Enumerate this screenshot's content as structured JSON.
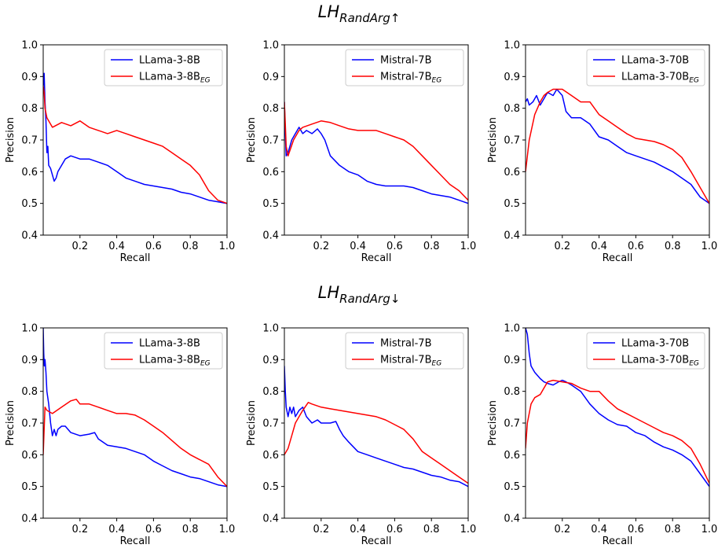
{
  "figure": {
    "row_titles": [
      {
        "base": "LH",
        "sub": "RandArg",
        "arrow": "↑"
      },
      {
        "base": "LH",
        "sub": "RandArg",
        "arrow": "↓"
      }
    ]
  },
  "chart_data": [
    {
      "type": "line",
      "row": 0,
      "col": 0,
      "xlabel": "Recall",
      "ylabel": "Precision",
      "xlim": [
        0,
        1
      ],
      "ylim": [
        0.4,
        1.0
      ],
      "xticks": [
        "0.2",
        "0.4",
        "0.6",
        "0.8",
        "1.0"
      ],
      "yticks": [
        "0.4",
        "0.5",
        "0.6",
        "0.7",
        "0.8",
        "0.9",
        "1.0"
      ],
      "legend": "top-right",
      "series": [
        {
          "name": "LLama-3-8B",
          "name_sub": "",
          "color": "#0000ff",
          "x": [
            0,
            0.005,
            0.01,
            0.015,
            0.02,
            0.025,
            0.03,
            0.04,
            0.05,
            0.06,
            0.07,
            0.08,
            0.1,
            0.12,
            0.15,
            0.2,
            0.25,
            0.3,
            0.35,
            0.4,
            0.45,
            0.5,
            0.55,
            0.6,
            0.65,
            0.7,
            0.75,
            0.8,
            0.85,
            0.9,
            0.95,
            1.0
          ],
          "y": [
            0.87,
            0.91,
            0.82,
            0.76,
            0.66,
            0.68,
            0.62,
            0.61,
            0.59,
            0.57,
            0.58,
            0.6,
            0.62,
            0.64,
            0.65,
            0.64,
            0.64,
            0.63,
            0.62,
            0.6,
            0.58,
            0.57,
            0.56,
            0.555,
            0.55,
            0.545,
            0.535,
            0.53,
            0.52,
            0.51,
            0.505,
            0.5
          ]
        },
        {
          "name": "LLama-3-8B",
          "name_sub": "EG",
          "color": "#ff0000",
          "x": [
            0,
            0.005,
            0.01,
            0.02,
            0.05,
            0.1,
            0.15,
            0.2,
            0.25,
            0.3,
            0.35,
            0.4,
            0.45,
            0.5,
            0.55,
            0.6,
            0.65,
            0.7,
            0.75,
            0.8,
            0.85,
            0.9,
            0.95,
            1.0
          ],
          "y": [
            0.87,
            0.85,
            0.8,
            0.77,
            0.74,
            0.755,
            0.745,
            0.76,
            0.74,
            0.73,
            0.72,
            0.73,
            0.72,
            0.71,
            0.7,
            0.69,
            0.68,
            0.66,
            0.64,
            0.62,
            0.59,
            0.54,
            0.51,
            0.5
          ]
        }
      ]
    },
    {
      "type": "line",
      "row": 0,
      "col": 1,
      "xlabel": "Recall",
      "ylabel": "Precision",
      "xlim": [
        0,
        1
      ],
      "ylim": [
        0.4,
        1.0
      ],
      "xticks": [
        "0.2",
        "0.4",
        "0.6",
        "0.8",
        "1.0"
      ],
      "yticks": [
        "0.4",
        "0.5",
        "0.6",
        "0.7",
        "0.8",
        "0.9",
        "1.0"
      ],
      "legend": "top-right",
      "series": [
        {
          "name": "Mistral-7B",
          "name_sub": "",
          "color": "#0000ff",
          "x": [
            0,
            0.005,
            0.01,
            0.02,
            0.04,
            0.06,
            0.08,
            0.1,
            0.12,
            0.15,
            0.18,
            0.2,
            0.22,
            0.25,
            0.3,
            0.35,
            0.4,
            0.45,
            0.5,
            0.55,
            0.6,
            0.65,
            0.7,
            0.75,
            0.8,
            0.85,
            0.9,
            0.95,
            1.0
          ],
          "y": [
            0.82,
            0.72,
            0.65,
            0.66,
            0.7,
            0.72,
            0.74,
            0.72,
            0.73,
            0.72,
            0.735,
            0.72,
            0.7,
            0.65,
            0.62,
            0.6,
            0.59,
            0.57,
            0.56,
            0.555,
            0.555,
            0.555,
            0.55,
            0.54,
            0.53,
            0.525,
            0.52,
            0.51,
            0.5
          ]
        },
        {
          "name": "Mistral-7B",
          "name_sub": "EG",
          "color": "#ff0000",
          "x": [
            0,
            0.005,
            0.01,
            0.02,
            0.05,
            0.08,
            0.1,
            0.15,
            0.2,
            0.25,
            0.3,
            0.35,
            0.4,
            0.45,
            0.5,
            0.55,
            0.6,
            0.65,
            0.7,
            0.75,
            0.8,
            0.85,
            0.9,
            0.95,
            1.0
          ],
          "y": [
            0.82,
            0.75,
            0.68,
            0.65,
            0.7,
            0.73,
            0.74,
            0.75,
            0.76,
            0.755,
            0.745,
            0.735,
            0.73,
            0.73,
            0.73,
            0.72,
            0.71,
            0.7,
            0.68,
            0.65,
            0.62,
            0.59,
            0.56,
            0.54,
            0.51
          ]
        }
      ]
    },
    {
      "type": "line",
      "row": 0,
      "col": 2,
      "xlabel": "Recall",
      "ylabel": "Precision",
      "xlim": [
        0,
        1
      ],
      "ylim": [
        0.4,
        1.0
      ],
      "xticks": [
        "0.2",
        "0.4",
        "0.6",
        "0.8",
        "1.0"
      ],
      "yticks": [
        "0.4",
        "0.5",
        "0.6",
        "0.7",
        "0.8",
        "0.9",
        "1.0"
      ],
      "legend": "top-right",
      "series": [
        {
          "name": "LLama-3-70B",
          "name_sub": "",
          "color": "#0000ff",
          "x": [
            0,
            0.01,
            0.02,
            0.04,
            0.06,
            0.08,
            0.1,
            0.12,
            0.15,
            0.17,
            0.2,
            0.22,
            0.25,
            0.3,
            0.35,
            0.4,
            0.45,
            0.5,
            0.55,
            0.6,
            0.65,
            0.7,
            0.75,
            0.8,
            0.85,
            0.9,
            0.95,
            1.0
          ],
          "y": [
            0.82,
            0.83,
            0.81,
            0.82,
            0.84,
            0.81,
            0.83,
            0.85,
            0.84,
            0.86,
            0.84,
            0.79,
            0.77,
            0.77,
            0.75,
            0.71,
            0.7,
            0.68,
            0.66,
            0.65,
            0.64,
            0.63,
            0.615,
            0.6,
            0.58,
            0.56,
            0.52,
            0.5
          ]
        },
        {
          "name": "LLama-3-70B",
          "name_sub": "EG",
          "color": "#ff0000",
          "x": [
            0,
            0.02,
            0.05,
            0.08,
            0.1,
            0.12,
            0.15,
            0.2,
            0.25,
            0.3,
            0.35,
            0.4,
            0.45,
            0.5,
            0.55,
            0.6,
            0.65,
            0.7,
            0.75,
            0.8,
            0.85,
            0.9,
            0.95,
            1.0
          ],
          "y": [
            0.6,
            0.7,
            0.78,
            0.82,
            0.84,
            0.85,
            0.86,
            0.86,
            0.84,
            0.82,
            0.82,
            0.78,
            0.76,
            0.74,
            0.72,
            0.705,
            0.7,
            0.695,
            0.685,
            0.67,
            0.645,
            0.6,
            0.55,
            0.5
          ]
        }
      ]
    },
    {
      "type": "line",
      "row": 1,
      "col": 0,
      "xlabel": "Recall",
      "ylabel": "Precision",
      "xlim": [
        0,
        1
      ],
      "ylim": [
        0.4,
        1.0
      ],
      "xticks": [
        "0.2",
        "0.4",
        "0.6",
        "0.8",
        "1.0"
      ],
      "yticks": [
        "0.4",
        "0.5",
        "0.6",
        "0.7",
        "0.8",
        "0.9",
        "1.0"
      ],
      "legend": "top-right",
      "series": [
        {
          "name": "LLama-3-8B",
          "name_sub": "",
          "color": "#0000ff",
          "x": [
            0,
            0.003,
            0.006,
            0.01,
            0.015,
            0.02,
            0.03,
            0.04,
            0.05,
            0.06,
            0.07,
            0.08,
            0.1,
            0.12,
            0.15,
            0.2,
            0.25,
            0.28,
            0.3,
            0.35,
            0.4,
            0.45,
            0.5,
            0.55,
            0.6,
            0.65,
            0.7,
            0.75,
            0.8,
            0.85,
            0.9,
            0.95,
            1.0
          ],
          "y": [
            1.0,
            0.92,
            0.88,
            0.9,
            0.86,
            0.8,
            0.76,
            0.7,
            0.66,
            0.68,
            0.66,
            0.68,
            0.69,
            0.69,
            0.67,
            0.66,
            0.665,
            0.67,
            0.65,
            0.63,
            0.625,
            0.62,
            0.61,
            0.6,
            0.58,
            0.565,
            0.55,
            0.54,
            0.53,
            0.525,
            0.515,
            0.505,
            0.5
          ]
        },
        {
          "name": "LLama-3-8B",
          "name_sub": "EG",
          "color": "#ff0000",
          "x": [
            0,
            0.005,
            0.01,
            0.02,
            0.05,
            0.1,
            0.15,
            0.18,
            0.2,
            0.25,
            0.3,
            0.35,
            0.4,
            0.45,
            0.5,
            0.55,
            0.6,
            0.65,
            0.7,
            0.75,
            0.8,
            0.85,
            0.9,
            0.95,
            1.0
          ],
          "y": [
            0.6,
            0.68,
            0.75,
            0.74,
            0.73,
            0.75,
            0.77,
            0.775,
            0.76,
            0.76,
            0.75,
            0.74,
            0.73,
            0.73,
            0.725,
            0.71,
            0.69,
            0.67,
            0.645,
            0.62,
            0.6,
            0.585,
            0.57,
            0.53,
            0.5
          ]
        }
      ]
    },
    {
      "type": "line",
      "row": 1,
      "col": 1,
      "xlabel": "Recall",
      "ylabel": "Precision",
      "xlim": [
        0,
        1
      ],
      "ylim": [
        0.4,
        1.0
      ],
      "xticks": [
        "0.2",
        "0.4",
        "0.6",
        "0.8",
        "1.0"
      ],
      "yticks": [
        "0.4",
        "0.5",
        "0.6",
        "0.7",
        "0.8",
        "0.9",
        "1.0"
      ],
      "legend": "top-right",
      "series": [
        {
          "name": "Mistral-7B",
          "name_sub": "",
          "color": "#0000ff",
          "x": [
            0,
            0.005,
            0.01,
            0.02,
            0.03,
            0.04,
            0.05,
            0.06,
            0.08,
            0.1,
            0.12,
            0.15,
            0.18,
            0.2,
            0.25,
            0.28,
            0.3,
            0.32,
            0.35,
            0.4,
            0.45,
            0.5,
            0.55,
            0.6,
            0.65,
            0.7,
            0.75,
            0.8,
            0.85,
            0.9,
            0.95,
            1.0
          ],
          "y": [
            0.88,
            0.8,
            0.75,
            0.72,
            0.75,
            0.73,
            0.75,
            0.72,
            0.74,
            0.75,
            0.72,
            0.7,
            0.71,
            0.7,
            0.7,
            0.705,
            0.68,
            0.66,
            0.64,
            0.61,
            0.6,
            0.59,
            0.58,
            0.57,
            0.56,
            0.555,
            0.545,
            0.535,
            0.53,
            0.52,
            0.515,
            0.5
          ]
        },
        {
          "name": "Mistral-7B",
          "name_sub": "EG",
          "color": "#ff0000",
          "x": [
            0,
            0.02,
            0.04,
            0.06,
            0.08,
            0.1,
            0.13,
            0.15,
            0.2,
            0.25,
            0.3,
            0.35,
            0.4,
            0.45,
            0.5,
            0.55,
            0.6,
            0.65,
            0.7,
            0.75,
            0.8,
            0.85,
            0.9,
            0.95,
            1.0
          ],
          "y": [
            0.6,
            0.62,
            0.66,
            0.7,
            0.72,
            0.74,
            0.765,
            0.76,
            0.75,
            0.745,
            0.74,
            0.735,
            0.73,
            0.725,
            0.72,
            0.71,
            0.695,
            0.68,
            0.65,
            0.61,
            0.59,
            0.57,
            0.55,
            0.53,
            0.51
          ]
        }
      ]
    },
    {
      "type": "line",
      "row": 1,
      "col": 2,
      "xlabel": "Recall",
      "ylabel": "Precision",
      "xlim": [
        0,
        1
      ],
      "ylim": [
        0.4,
        1.0
      ],
      "xticks": [
        "0.2",
        "0.4",
        "0.6",
        "0.8",
        "1.0"
      ],
      "yticks": [
        "0.4",
        "0.5",
        "0.6",
        "0.7",
        "0.8",
        "0.9",
        "1.0"
      ],
      "legend": "top-right",
      "series": [
        {
          "name": "LLama-3-70B",
          "name_sub": "",
          "color": "#0000ff",
          "x": [
            0,
            0.01,
            0.02,
            0.03,
            0.05,
            0.08,
            0.1,
            0.12,
            0.15,
            0.18,
            0.2,
            0.22,
            0.25,
            0.3,
            0.35,
            0.4,
            0.45,
            0.5,
            0.55,
            0.6,
            0.65,
            0.7,
            0.75,
            0.8,
            0.85,
            0.9,
            0.95,
            1.0
          ],
          "y": [
            1.0,
            0.98,
            0.92,
            0.88,
            0.86,
            0.84,
            0.83,
            0.825,
            0.82,
            0.83,
            0.835,
            0.83,
            0.82,
            0.8,
            0.76,
            0.73,
            0.71,
            0.695,
            0.69,
            0.67,
            0.66,
            0.64,
            0.625,
            0.615,
            0.6,
            0.58,
            0.54,
            0.5
          ]
        },
        {
          "name": "LLama-3-70B",
          "name_sub": "EG",
          "color": "#ff0000",
          "x": [
            0,
            0.01,
            0.03,
            0.05,
            0.08,
            0.1,
            0.12,
            0.15,
            0.2,
            0.25,
            0.3,
            0.35,
            0.4,
            0.45,
            0.5,
            0.55,
            0.6,
            0.65,
            0.7,
            0.75,
            0.8,
            0.85,
            0.9,
            0.95,
            1.0
          ],
          "y": [
            0.62,
            0.7,
            0.76,
            0.78,
            0.79,
            0.81,
            0.83,
            0.835,
            0.83,
            0.825,
            0.81,
            0.8,
            0.8,
            0.77,
            0.745,
            0.73,
            0.715,
            0.7,
            0.685,
            0.67,
            0.66,
            0.645,
            0.62,
            0.57,
            0.51
          ]
        }
      ]
    }
  ]
}
